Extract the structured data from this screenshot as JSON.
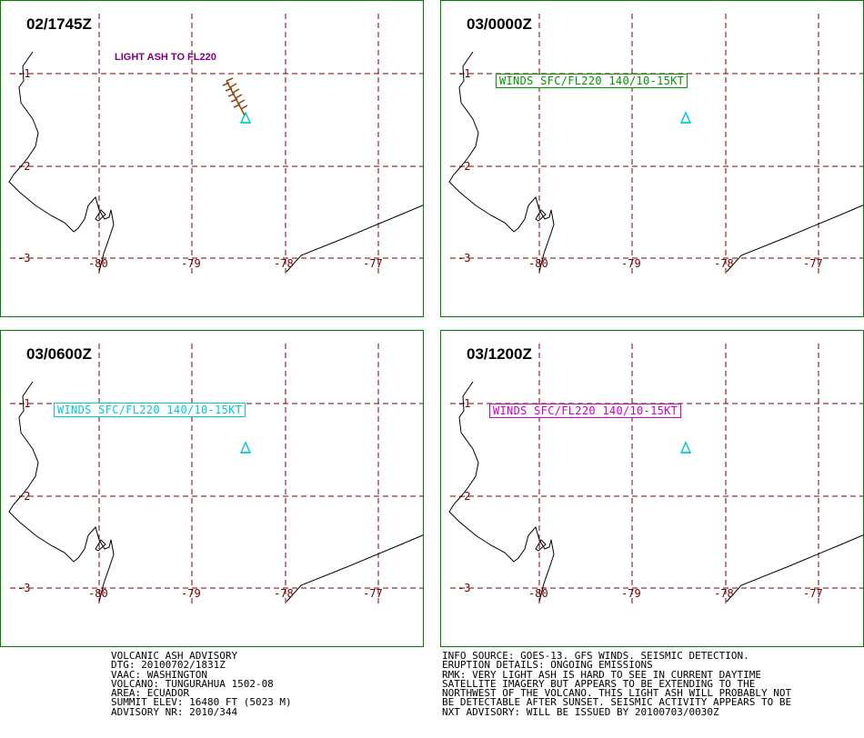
{
  "panels": [
    {
      "time": "02/1745Z",
      "label": "LIGHT ASH TO FL220",
      "label_color": "#800080"
    },
    {
      "time": "03/0000Z",
      "label": "WINDS SFC/FL220 140/10-15KT",
      "label_color": "#009900"
    },
    {
      "time": "03/0600Z",
      "label": "WINDS SFC/FL220 140/10-15KT",
      "label_color": "#00cccc"
    },
    {
      "time": "03/1200Z",
      "label": "WINDS SFC/FL220 140/10-15KT",
      "label_color": "#cc00cc"
    }
  ],
  "grid": {
    "latitudes": [
      "-1",
      "-2",
      "-3"
    ],
    "longitudes": [
      "-80",
      "-79",
      "-78",
      "-77"
    ]
  },
  "colors": {
    "border": "#008000",
    "grid": "#7a0000",
    "coast": "#000000",
    "volcano": "#00cccc",
    "ash": "#8b4513"
  },
  "advisory": {
    "lines": [
      "VOLCANIC ASH ADVISORY",
      "DTG: 20100702/1831Z",
      "VAAC: WASHINGTON",
      "VOLCANO: TUNGURAHUA 1502-08",
      "AREA: ECUADOR",
      "SUMMIT ELEV: 16480 FT (5023 M)",
      "ADVISORY NR: 2010/344"
    ]
  },
  "info": {
    "lines": [
      "INFO SOURCE: GOES-13. GFS WINDS. SEISMIC DETECTION.",
      "ERUPTION DETAILS: ONGOING EMISSIONS",
      "RMK: VERY LIGHT ASH IS HARD TO SEE IN CURRENT DAYTIME",
      "SATELLITE IMAGERY BUT APPEARS TO BE EXTENDING TO THE",
      "NORTHWEST OF THE VOLCANO. THIS LIGHT ASH WILL PROBABLY NOT",
      "BE DETECTABLE AFTER SUNSET. SEISMIC ACTIVITY APPEARS TO BE",
      "NXT ADVISORY: WILL BE ISSUED BY 20100703/0030Z"
    ]
  }
}
